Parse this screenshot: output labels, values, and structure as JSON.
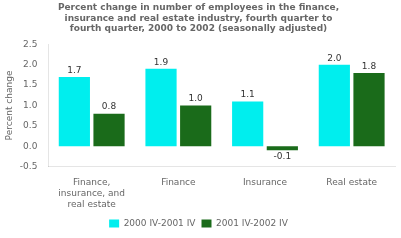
{
  "chart_data": {
    "type": "bar",
    "title": "Percent change in number of employees in the finance,\ninsurance and real estate industry, fourth quarter to\nfourth quarter, 2000 to 2002 (seasonally adjusted)",
    "categories": [
      "Finance,\ninsurance, and\nreal estate",
      "Finance",
      "Insurance",
      "Real estate"
    ],
    "series": [
      {
        "name": "2000 IV-2001 IV",
        "color": "#00EEEE",
        "values": [
          1.7,
          1.9,
          1.1,
          2.0
        ],
        "value_labels": [
          "1.7",
          "1.9",
          "1.1",
          "2.0"
        ]
      },
      {
        "name": "2001 IV-2002 IV",
        "color": "#1A6B1A",
        "values": [
          0.8,
          1.0,
          -0.1,
          1.8
        ],
        "value_labels": [
          "0.8",
          "1.0",
          "-0.1",
          "1.8"
        ]
      }
    ],
    "ylabel": "Percent change",
    "ylim": [
      -0.5,
      2.5
    ],
    "yticks": [
      -0.5,
      {
        "value": 0.0,
        "label": "0.0"
      },
      0.5,
      {
        "value": 1.0,
        "label": "1.0"
      },
      1.5,
      {
        "value": 2.0,
        "label": "2.0"
      },
      2.5
    ],
    "grid": false,
    "legend": "bottom",
    "data_labels": true
  }
}
